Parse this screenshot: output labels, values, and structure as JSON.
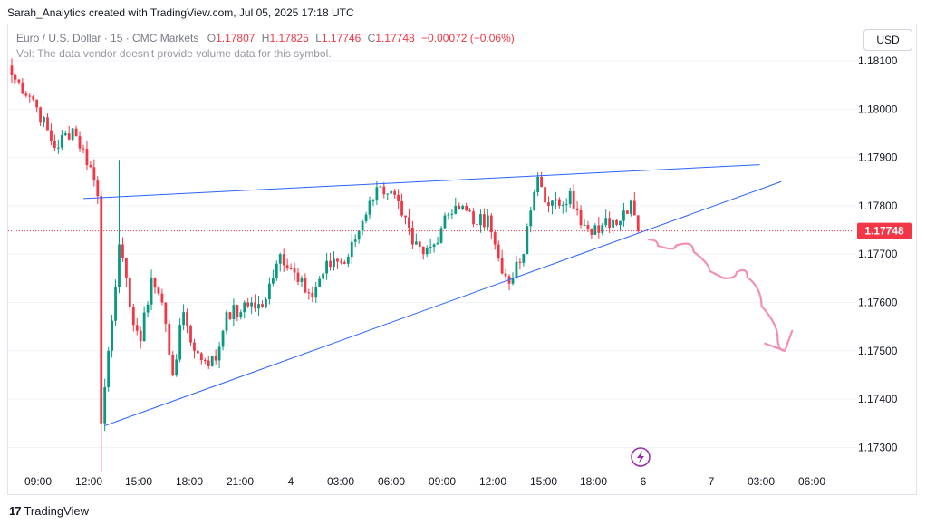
{
  "header": {
    "text": "Sarah_Analytics created with TradingView.com, Jul 05, 2025 17:18 UTC"
  },
  "legend": {
    "symbol": "Euro / U.S. Dollar · 15 · CMC Markets",
    "o_label": "O",
    "o_value": "1.17807",
    "h_label": "H",
    "h_value": "1.17825",
    "l_label": "L",
    "l_value": "1.17746",
    "c_label": "C",
    "c_value": "1.17748",
    "change": "−0.00072 (−0.06%)",
    "vol_note": "Vol: The data vendor doesn't provide volume data for this symbol."
  },
  "currency_button": "USD",
  "footer": {
    "brand": "TradingView",
    "logo": "17"
  },
  "colors": {
    "up": "#089981",
    "down": "#f23645",
    "trendline": "#2962ff",
    "projection": "#f48fb1",
    "price_label_bg": "#f23645"
  },
  "chart_data": {
    "type": "candlestick",
    "symbol": "EURUSD",
    "interval": "15",
    "ylim": [
      1.1724,
      1.1813
    ],
    "y_ticks": [
      "1.18100",
      "1.18000",
      "1.17900",
      "1.17800",
      "1.17700",
      "1.17600",
      "1.17500",
      "1.17400",
      "1.17300"
    ],
    "x_ticks": [
      "09:00",
      "12:00",
      "15:00",
      "18:00",
      "21:00",
      "4",
      "03:00",
      "06:00",
      "09:00",
      "12:00",
      "15:00",
      "18:00",
      "6",
      "7",
      "03:00",
      "06:00"
    ],
    "last_price": "1.17748",
    "anchors": [
      {
        "t": 0,
        "p": 1.1807
      },
      {
        "t": 6,
        "p": 1.1802
      },
      {
        "t": 12,
        "p": 1.1792
      },
      {
        "t": 17,
        "p": 1.1796
      },
      {
        "t": 22,
        "p": 1.1788
      },
      {
        "t": 24,
        "p": 1.1782
      },
      {
        "t": 25,
        "p": 1.1735
      },
      {
        "t": 27,
        "p": 1.175
      },
      {
        "t": 30,
        "p": 1.1772
      },
      {
        "t": 33,
        "p": 1.1759
      },
      {
        "t": 36,
        "p": 1.1752
      },
      {
        "t": 39,
        "p": 1.1765
      },
      {
        "t": 42,
        "p": 1.176
      },
      {
        "t": 45,
        "p": 1.1745
      },
      {
        "t": 48,
        "p": 1.1758
      },
      {
        "t": 51,
        "p": 1.175
      },
      {
        "t": 54,
        "p": 1.1748
      },
      {
        "t": 57,
        "p": 1.1748
      },
      {
        "t": 60,
        "p": 1.1758
      },
      {
        "t": 64,
        "p": 1.1758
      },
      {
        "t": 67,
        "p": 1.176
      },
      {
        "t": 70,
        "p": 1.1759
      },
      {
        "t": 73,
        "p": 1.1765
      },
      {
        "t": 75,
        "p": 1.177
      },
      {
        "t": 78,
        "p": 1.1767
      },
      {
        "t": 81,
        "p": 1.1765
      },
      {
        "t": 84,
        "p": 1.1761
      },
      {
        "t": 87,
        "p": 1.1766
      },
      {
        "t": 90,
        "p": 1.1769
      },
      {
        "t": 93,
        "p": 1.1768
      },
      {
        "t": 96,
        "p": 1.1773
      },
      {
        "t": 100,
        "p": 1.1781
      },
      {
        "t": 103,
        "p": 1.1784
      },
      {
        "t": 106,
        "p": 1.1783
      },
      {
        "t": 109,
        "p": 1.1778
      },
      {
        "t": 112,
        "p": 1.1772
      },
      {
        "t": 115,
        "p": 1.177
      },
      {
        "t": 118,
        "p": 1.1772
      },
      {
        "t": 121,
        "p": 1.1778
      },
      {
        "t": 124,
        "p": 1.178
      },
      {
        "t": 127,
        "p": 1.1779
      },
      {
        "t": 130,
        "p": 1.1776
      },
      {
        "t": 133,
        "p": 1.1778
      },
      {
        "t": 135,
        "p": 1.1772
      },
      {
        "t": 137,
        "p": 1.1766
      },
      {
        "t": 140,
        "p": 1.1765
      },
      {
        "t": 143,
        "p": 1.177
      },
      {
        "t": 145,
        "p": 1.1779
      },
      {
        "t": 147,
        "p": 1.1786
      },
      {
        "t": 150,
        "p": 1.178
      },
      {
        "t": 153,
        "p": 1.178
      },
      {
        "t": 156,
        "p": 1.1783
      },
      {
        "t": 159,
        "p": 1.1776
      },
      {
        "t": 162,
        "p": 1.1774
      },
      {
        "t": 165,
        "p": 1.1776
      },
      {
        "t": 168,
        "p": 1.1777
      },
      {
        "t": 171,
        "p": 1.1779
      },
      {
        "t": 173,
        "p": 1.1781
      },
      {
        "t": 175,
        "p": 1.17748
      }
    ],
    "drawings": {
      "upper_trendline": {
        "from": {
          "t": 20,
          "p": 1.17815
        },
        "to": {
          "t": 209,
          "p": 1.17885
        }
      },
      "lower_trendline": {
        "from": {
          "t": 26,
          "p": 1.17345
        },
        "to": {
          "t": 215,
          "p": 1.1785
        }
      },
      "projection": [
        {
          "t": 178,
          "p": 1.1773
        },
        {
          "t": 183,
          "p": 1.17705
        },
        {
          "t": 188,
          "p": 1.1773
        },
        {
          "t": 193,
          "p": 1.1768
        },
        {
          "t": 197,
          "p": 1.1765
        },
        {
          "t": 201,
          "p": 1.1765
        },
        {
          "t": 204,
          "p": 1.17675
        },
        {
          "t": 207,
          "p": 1.1763
        },
        {
          "t": 212,
          "p": 1.17555
        },
        {
          "t": 216,
          "p": 1.175
        }
      ],
      "arrow_tip": {
        "t": 216,
        "p": 1.175
      }
    }
  }
}
